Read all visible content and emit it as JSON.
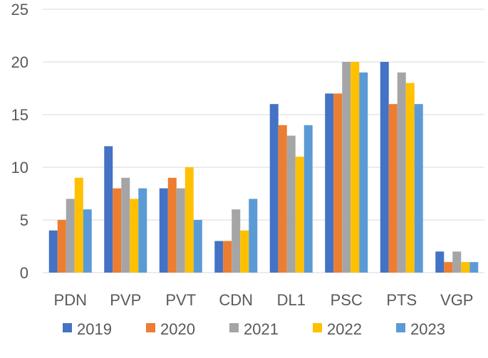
{
  "chart_data": {
    "type": "bar",
    "title": "",
    "xlabel": "",
    "ylabel": "",
    "ylim": [
      0,
      25
    ],
    "yticks": [
      0,
      5,
      10,
      15,
      20,
      25
    ],
    "grid": true,
    "legend_position": "bottom",
    "categories": [
      "PDN",
      "PVP",
      "PVT",
      "CDN",
      "DL1",
      "PSC",
      "PTS",
      "VGP"
    ],
    "series": [
      {
        "name": "2019",
        "color": "#4472c4",
        "values": [
          4,
          12,
          8,
          3,
          16,
          17,
          20,
          2
        ]
      },
      {
        "name": "2020",
        "color": "#ed7d31",
        "values": [
          5,
          8,
          9,
          3,
          14,
          17,
          16,
          1
        ]
      },
      {
        "name": "2021",
        "color": "#a5a5a5",
        "values": [
          7,
          9,
          8,
          6,
          13,
          20,
          19,
          2
        ]
      },
      {
        "name": "2022",
        "color": "#ffc000",
        "values": [
          9,
          7,
          10,
          4,
          11,
          20,
          18,
          1
        ]
      },
      {
        "name": "2023",
        "color": "#5b9bd5",
        "values": [
          6,
          8,
          5,
          7,
          14,
          19,
          16,
          1
        ]
      }
    ]
  }
}
